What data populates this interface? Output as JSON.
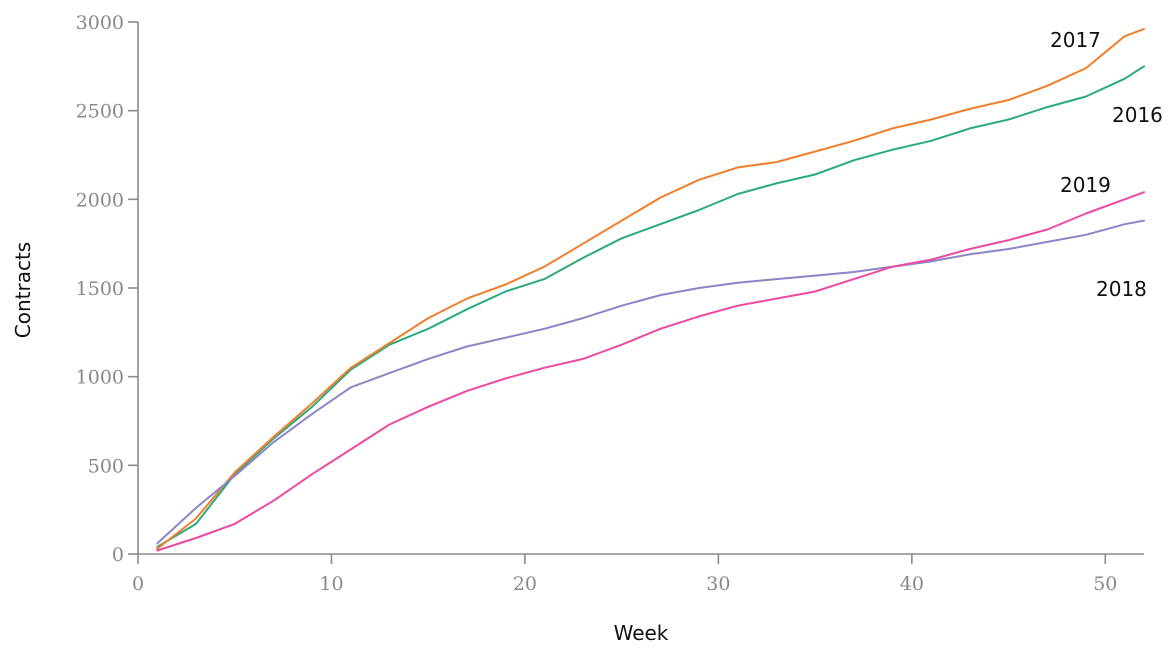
{
  "chart_data": {
    "type": "line",
    "title": "",
    "xlabel": "Week",
    "ylabel": "Contracts",
    "xlim": [
      0,
      52
    ],
    "ylim": [
      0,
      3000
    ],
    "xticks": [
      "0",
      "10",
      "20",
      "30",
      "40",
      "50"
    ],
    "yticks": [
      "0",
      "500",
      "1000",
      "1500",
      "2000",
      "2500",
      "3000"
    ],
    "grid": false,
    "legend": "inline labels at line ends",
    "series": [
      {
        "name": "2016",
        "color": "#2aaa7e",
        "x": [
          1,
          3,
          5,
          7,
          9,
          11,
          13,
          15,
          17,
          19,
          21,
          23,
          25,
          27,
          29,
          31,
          33,
          35,
          37,
          39,
          41,
          43,
          45,
          47,
          49,
          51,
          52
        ],
        "y": [
          40,
          170,
          450,
          650,
          830,
          1040,
          1180,
          1270,
          1380,
          1480,
          1550,
          1670,
          1780,
          1860,
          1940,
          2030,
          2090,
          2140,
          2220,
          2280,
          2330,
          2400,
          2450,
          2520,
          2580,
          2680,
          2750
        ]
      },
      {
        "name": "2017",
        "color": "#f07f2d",
        "x": [
          1,
          3,
          5,
          7,
          9,
          11,
          13,
          15,
          17,
          19,
          21,
          23,
          25,
          27,
          29,
          31,
          33,
          35,
          37,
          39,
          41,
          43,
          45,
          47,
          49,
          51,
          52
        ],
        "y": [
          30,
          200,
          460,
          660,
          850,
          1050,
          1190,
          1330,
          1440,
          1520,
          1620,
          1750,
          1880,
          2010,
          2110,
          2180,
          2210,
          2270,
          2330,
          2400,
          2450,
          2510,
          2560,
          2640,
          2740,
          2920,
          2960
        ]
      },
      {
        "name": "2018",
        "color": "#8b85c8",
        "x": [
          1,
          3,
          5,
          7,
          9,
          11,
          13,
          15,
          17,
          19,
          21,
          23,
          25,
          27,
          29,
          31,
          33,
          35,
          37,
          39,
          41,
          43,
          45,
          47,
          49,
          51,
          52
        ],
        "y": [
          60,
          260,
          440,
          630,
          790,
          940,
          1020,
          1100,
          1170,
          1220,
          1270,
          1330,
          1400,
          1460,
          1500,
          1530,
          1550,
          1570,
          1590,
          1620,
          1650,
          1690,
          1720,
          1760,
          1800,
          1860,
          1880
        ]
      },
      {
        "name": "2019",
        "color": "#ec4aa1",
        "x": [
          1,
          3,
          5,
          7,
          9,
          11,
          13,
          15,
          17,
          19,
          21,
          23,
          25,
          27,
          29,
          31,
          33,
          35,
          37,
          39,
          41,
          43,
          45,
          47,
          49,
          51,
          52
        ],
        "y": [
          20,
          90,
          170,
          300,
          450,
          590,
          730,
          830,
          920,
          990,
          1050,
          1100,
          1180,
          1270,
          1340,
          1400,
          1440,
          1480,
          1550,
          1620,
          1660,
          1720,
          1770,
          1830,
          1920,
          2000,
          2040
        ]
      }
    ]
  }
}
